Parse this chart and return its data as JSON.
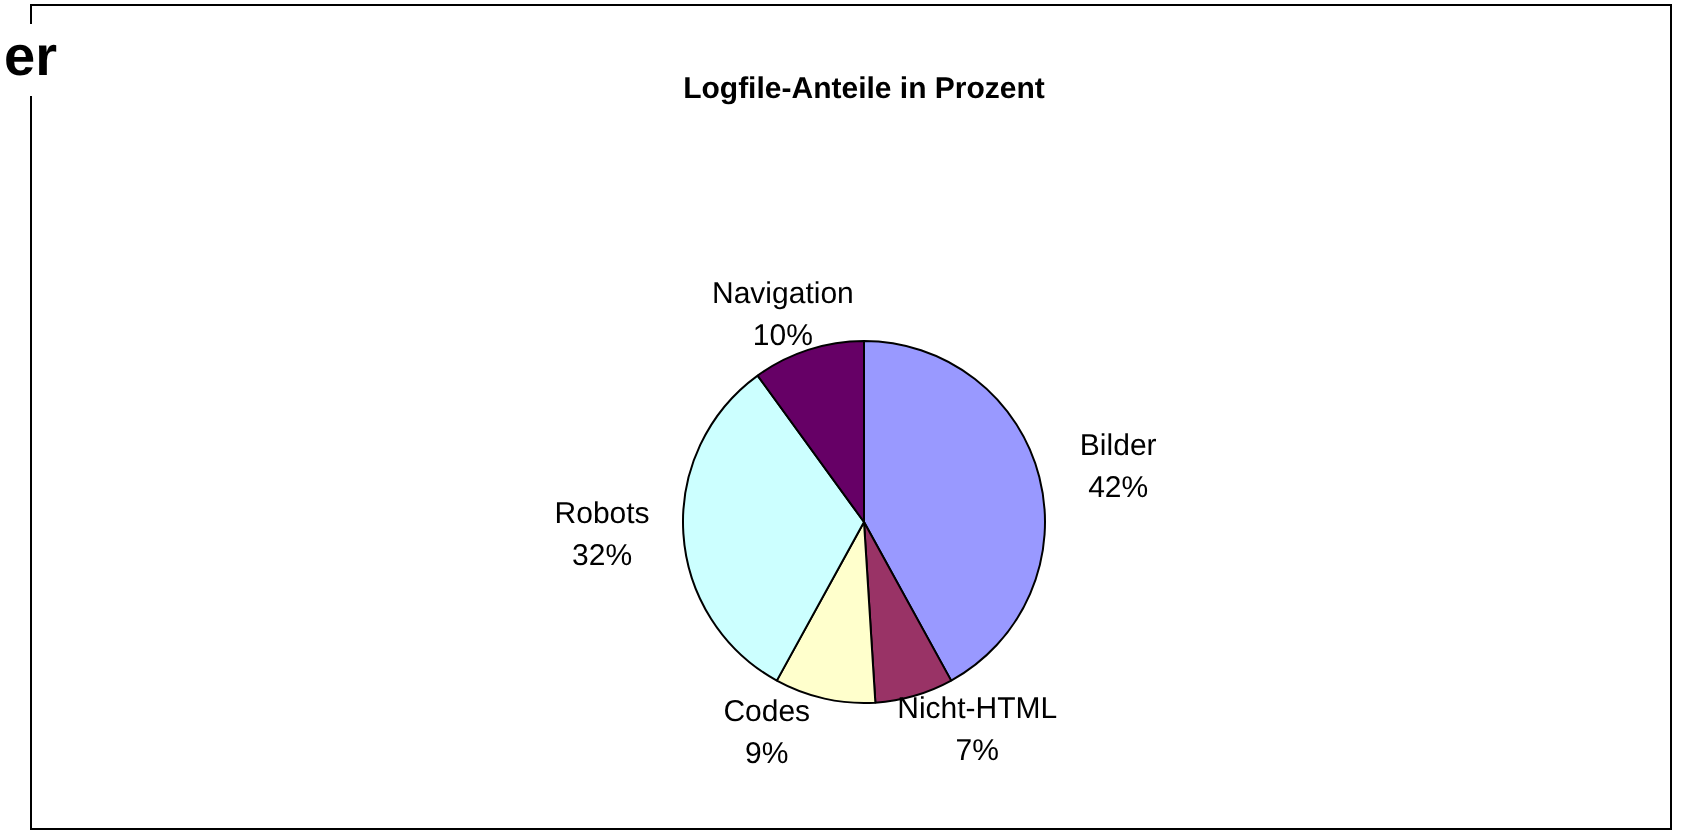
{
  "chart_data": {
    "type": "pie",
    "title": "Logfile-Anteile in Prozent",
    "categories": [
      "Bilder",
      "Nicht-HTML",
      "Codes",
      "Robots",
      "Navigation"
    ],
    "values": [
      42,
      7,
      9,
      32,
      10
    ],
    "colors": [
      "#9999ff",
      "#993366",
      "#ffffcc",
      "#ccffff",
      "#660066"
    ],
    "value_labels": [
      "42%",
      "7%",
      "9%",
      "32%",
      "10%"
    ],
    "legend": false,
    "annotations": [
      "er"
    ]
  }
}
